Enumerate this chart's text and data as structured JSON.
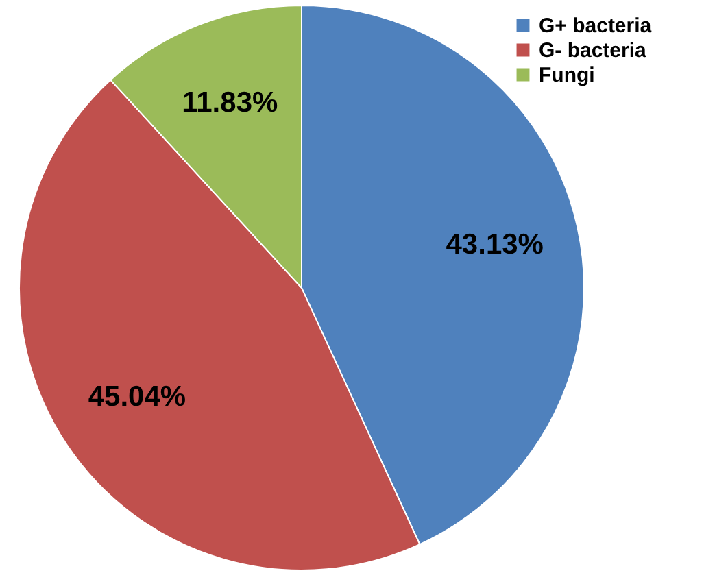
{
  "chart_data": {
    "type": "pie",
    "categories": [
      "G+ bacteria",
      "G- bacteria",
      "Fungi"
    ],
    "values": [
      43.13,
      45.04,
      11.83
    ],
    "colors": [
      "#4f81bd",
      "#c0504d",
      "#9bbb59"
    ],
    "value_labels": [
      "43.13%",
      "45.04%",
      "11.83%"
    ],
    "legend": "top right"
  }
}
